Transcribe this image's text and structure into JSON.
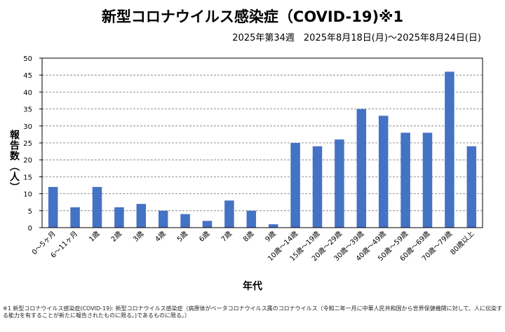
{
  "chart_data": {
    "type": "bar",
    "title": "新型コロナウイルス感染症（COVID-19)※1",
    "subtitle": "2025年第34週　2025年8月18日(月)～2025年8月24日(日)",
    "xlabel": "年代",
    "ylabel": "報告数（人）",
    "categories": [
      "0～5ヶ月",
      "6～11ヶ月",
      "1歳",
      "2歳",
      "3歳",
      "4歳",
      "5歳",
      "6歳",
      "7歳",
      "8歳",
      "9歳",
      "10歳～14歳",
      "15歳～19歳",
      "20歳～29歳",
      "30歳～39歳",
      "40歳～49歳",
      "50歳～59歳",
      "60歳～69歳",
      "70歳～79歳",
      "80歳以上"
    ],
    "values": [
      12,
      6,
      12,
      6,
      7,
      5,
      4,
      2,
      8,
      5,
      1,
      25,
      24,
      26,
      35,
      33,
      28,
      28,
      46,
      24
    ],
    "ylim": [
      0,
      50
    ],
    "yticks": [
      0,
      5,
      10,
      15,
      20,
      25,
      30,
      35,
      40,
      45,
      50
    ],
    "grid": "dashed horizontal",
    "bar_color": "#4472C4"
  },
  "footnote": "※1 新型コロナウイルス感染症(COVID-19): 新型コロナウイルス感染症（病原体がベータコロナウイルス属のコロナウイルス（令和二年一月に中華人民共和国から世界保健機関に対して、人に伝染する能力を有することが新たに報告されたものに限る。)であるものに限る。）"
}
